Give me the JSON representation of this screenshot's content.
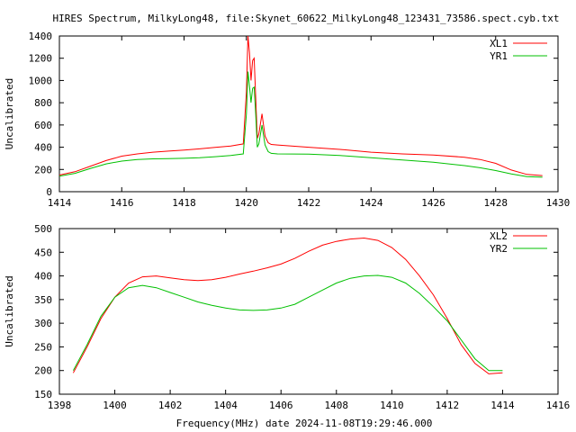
{
  "title": "HIRES Spectrum, MilkyLong48, file:Skynet_60622_MilkyLong48_123431_73586.spect.cyb.txt",
  "xlabel": "Frequency(MHz) date 2024-11-08T19:29:46.000",
  "chart_data": [
    {
      "type": "line",
      "ylabel": "Uncalibrated",
      "xlim": [
        1414,
        1430
      ],
      "ylim": [
        0,
        1400
      ],
      "xticks": [
        1414,
        1416,
        1418,
        1420,
        1422,
        1424,
        1426,
        1428,
        1430
      ],
      "yticks": [
        0,
        200,
        400,
        600,
        800,
        1000,
        1200,
        1400
      ],
      "grid": false,
      "legend_position": "top-right",
      "series": [
        {
          "name": "XL1",
          "color": "#ff0000",
          "x": [
            1414.0,
            1414.5,
            1415.0,
            1415.5,
            1416.0,
            1416.5,
            1417.0,
            1417.5,
            1418.0,
            1418.5,
            1419.0,
            1419.5,
            1419.9,
            1420.0,
            1420.05,
            1420.1,
            1420.15,
            1420.2,
            1420.25,
            1420.3,
            1420.35,
            1420.4,
            1420.5,
            1420.6,
            1420.7,
            1420.8,
            1421.0,
            1422.0,
            1423.0,
            1424.0,
            1425.0,
            1426.0,
            1427.0,
            1427.5,
            1428.0,
            1428.5,
            1429.0,
            1429.5
          ],
          "y": [
            150,
            180,
            230,
            280,
            320,
            340,
            355,
            365,
            375,
            385,
            398,
            410,
            430,
            900,
            1400,
            1250,
            1000,
            1180,
            1200,
            850,
            480,
            520,
            700,
            500,
            440,
            425,
            420,
            400,
            380,
            355,
            340,
            330,
            310,
            290,
            255,
            195,
            155,
            145
          ]
        },
        {
          "name": "YR1",
          "color": "#00c000",
          "x": [
            1414.0,
            1414.5,
            1415.0,
            1415.5,
            1416.0,
            1416.5,
            1417.0,
            1417.5,
            1418.0,
            1418.5,
            1419.0,
            1419.5,
            1419.9,
            1420.0,
            1420.05,
            1420.1,
            1420.15,
            1420.2,
            1420.25,
            1420.3,
            1420.35,
            1420.4,
            1420.5,
            1420.6,
            1420.7,
            1420.8,
            1421.0,
            1422.0,
            1423.0,
            1424.0,
            1425.0,
            1426.0,
            1427.0,
            1427.5,
            1428.0,
            1428.5,
            1429.0,
            1429.5
          ],
          "y": [
            140,
            165,
            210,
            250,
            275,
            290,
            295,
            298,
            300,
            305,
            315,
            325,
            340,
            700,
            1080,
            950,
            800,
            930,
            940,
            700,
            400,
            430,
            600,
            420,
            360,
            345,
            340,
            338,
            325,
            305,
            285,
            265,
            235,
            215,
            190,
            160,
            135,
            130
          ]
        }
      ]
    },
    {
      "type": "line",
      "ylabel": "Uncalibrated",
      "xlim": [
        1398,
        1416
      ],
      "ylim": [
        150,
        500
      ],
      "xticks": [
        1398,
        1400,
        1402,
        1404,
        1406,
        1408,
        1410,
        1412,
        1414,
        1416
      ],
      "yticks": [
        150,
        200,
        250,
        300,
        350,
        400,
        450,
        500
      ],
      "grid": false,
      "legend_position": "top-right",
      "series": [
        {
          "name": "XL2",
          "color": "#ff0000",
          "x": [
            1398.5,
            1399.0,
            1399.5,
            1400.0,
            1400.5,
            1401.0,
            1401.5,
            1402.0,
            1402.5,
            1403.0,
            1403.5,
            1404.0,
            1404.5,
            1405.0,
            1405.5,
            1406.0,
            1406.5,
            1407.0,
            1407.5,
            1408.0,
            1408.5,
            1409.0,
            1409.5,
            1410.0,
            1410.5,
            1411.0,
            1411.5,
            1412.0,
            1412.5,
            1413.0,
            1413.5,
            1414.0
          ],
          "y": [
            195,
            250,
            310,
            355,
            385,
            398,
            400,
            396,
            392,
            390,
            392,
            397,
            404,
            410,
            417,
            425,
            437,
            452,
            465,
            473,
            478,
            480,
            475,
            460,
            435,
            400,
            360,
            310,
            255,
            215,
            193,
            195
          ]
        },
        {
          "name": "YR2",
          "color": "#00c000",
          "x": [
            1398.5,
            1399.0,
            1399.5,
            1400.0,
            1400.5,
            1401.0,
            1401.5,
            1402.0,
            1402.5,
            1403.0,
            1403.5,
            1404.0,
            1404.5,
            1405.0,
            1405.5,
            1406.0,
            1406.5,
            1407.0,
            1407.5,
            1408.0,
            1408.5,
            1409.0,
            1409.5,
            1410.0,
            1410.5,
            1411.0,
            1411.5,
            1412.0,
            1412.5,
            1413.0,
            1413.5,
            1414.0
          ],
          "y": [
            200,
            255,
            315,
            355,
            375,
            380,
            375,
            365,
            355,
            345,
            338,
            332,
            328,
            327,
            328,
            332,
            340,
            355,
            370,
            385,
            395,
            400,
            401,
            397,
            385,
            363,
            335,
            305,
            265,
            225,
            200,
            200
          ]
        }
      ]
    }
  ]
}
